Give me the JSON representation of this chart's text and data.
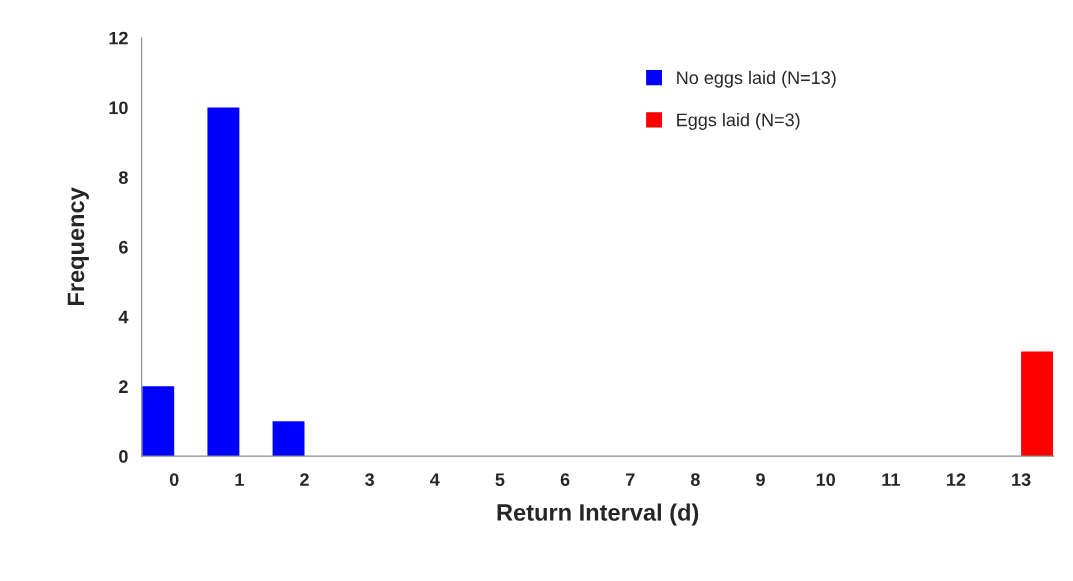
{
  "chart_data": {
    "type": "bar",
    "xlabel": "Return Interval (d)",
    "ylabel": "Frequency",
    "categories": [
      "0",
      "1",
      "2",
      "3",
      "4",
      "5",
      "6",
      "7",
      "8",
      "9",
      "10",
      "11",
      "12",
      "13"
    ],
    "series": [
      {
        "name": "No eggs laid (N=13)",
        "color": "#0000ff",
        "values": [
          2,
          10,
          1,
          0,
          0,
          0,
          0,
          0,
          0,
          0,
          0,
          0,
          0,
          0
        ]
      },
      {
        "name": "Eggs laid (N=3)",
        "color": "#ff0000",
        "values": [
          0,
          0,
          0,
          0,
          0,
          0,
          0,
          0,
          0,
          0,
          0,
          0,
          0,
          3
        ]
      }
    ],
    "ylim": [
      0,
      12
    ],
    "yticks": [
      0,
      2,
      4,
      6,
      8,
      10,
      12
    ],
    "grid": false,
    "legend": "top right"
  }
}
